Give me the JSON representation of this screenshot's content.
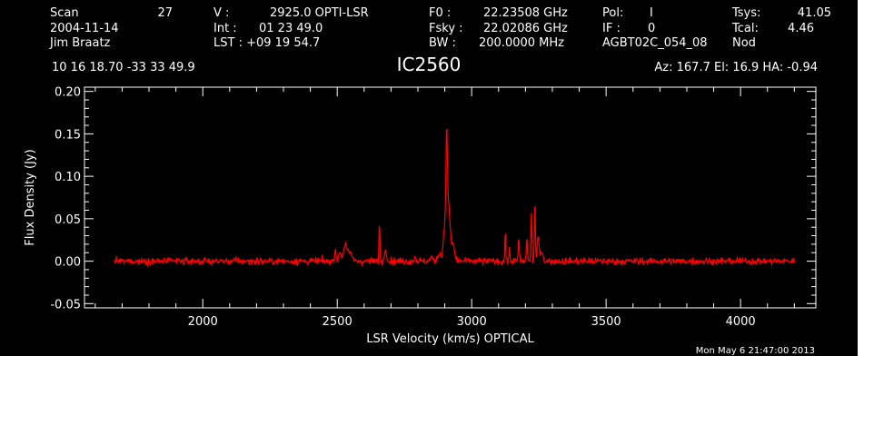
{
  "header": {
    "scan_label": "Scan",
    "scan_value": "27",
    "date": "2004-11-14",
    "observer": "Jim Braatz",
    "coords": "10 16 18.70  -33 33 49.9",
    "v_label": "V   :",
    "v_value": "2925.0 OPTI-LSR",
    "int_label": "Int  :",
    "int_value": "01 23 49.0",
    "lst_label": "LST : +09 19 54.7",
    "f0_label": "F0   :",
    "f0_value": "22.23508 GHz",
    "fsky_label": "Fsky :",
    "fsky_value": "22.02086 GHz",
    "bw_label": "BW   :",
    "bw_value": "200.0000 MHz",
    "pol_label": "Pol:",
    "pol_value": "I",
    "if_label": "IF :",
    "if_value": "0",
    "project": "AGBT02C_054_08",
    "tsys_label": "Tsys:",
    "tsys_value": "41.05",
    "tcal_label": "Tcal:",
    "tcal_value": "4.46",
    "mode": "Nod",
    "source": "IC2560",
    "pointing": "Az: 167.7  El:  16.9  HA: -0.94"
  },
  "timestamp": "Mon May  6 21:47:00 2013",
  "colors": {
    "background": "#000000",
    "foreground": "#ffffff",
    "spectrum": "#ff0000"
  },
  "chart_data": {
    "type": "line",
    "title": "IC2560",
    "xlabel": "LSR Velocity (km/s) OPTICAL",
    "ylabel": "Flux Density (Jy)",
    "xlim": [
      1560,
      4280
    ],
    "ylim": [
      -0.055,
      0.205
    ],
    "x_ticks": [
      2000,
      2500,
      3000,
      3500,
      4000
    ],
    "y_ticks": [
      -0.05,
      0.0,
      0.05,
      0.1,
      0.15,
      0.2
    ],
    "y_tick_labels": [
      "-0.05",
      "0.00",
      "0.05",
      "0.10",
      "0.15",
      "0.20"
    ],
    "grid": false,
    "legend": "none",
    "series": [
      {
        "x_start": 1670,
        "x_end": 4200,
        "x_step": 2,
        "noise_rms": 0.002,
        "baseline": 0.0,
        "features": [
          {
            "x": 2493,
            "peak": 0.014,
            "width": 3
          },
          {
            "x": 2510,
            "peak": 0.01,
            "width": 4
          },
          {
            "x": 2530,
            "peak": 0.02,
            "width": 7
          },
          {
            "x": 2548,
            "peak": 0.008,
            "width": 8
          },
          {
            "x": 2657,
            "peak": 0.047,
            "width": 1.6
          },
          {
            "x": 2680,
            "peak": 0.015,
            "width": 4
          },
          {
            "x": 2790,
            "peak": 0.006,
            "width": 3
          },
          {
            "x": 2850,
            "peak": 0.005,
            "width": 4
          },
          {
            "x": 2880,
            "peak": 0.01,
            "width": 6
          },
          {
            "x": 2898,
            "peak": 0.04,
            "width": 4
          },
          {
            "x": 2907,
            "peak": 0.14,
            "width": 3
          },
          {
            "x": 2915,
            "peak": 0.06,
            "width": 5
          },
          {
            "x": 2930,
            "peak": 0.02,
            "width": 6
          },
          {
            "x": 3125,
            "peak": 0.038,
            "width": 1.5
          },
          {
            "x": 3140,
            "peak": 0.012,
            "width": 2
          },
          {
            "x": 3175,
            "peak": 0.027,
            "width": 2
          },
          {
            "x": 3205,
            "peak": 0.028,
            "width": 2
          },
          {
            "x": 3222,
            "peak": 0.06,
            "width": 1.8
          },
          {
            "x": 3235,
            "peak": 0.073,
            "width": 1.8
          },
          {
            "x": 3247,
            "peak": 0.03,
            "width": 3
          },
          {
            "x": 3260,
            "peak": 0.012,
            "width": 5
          }
        ]
      }
    ]
  }
}
